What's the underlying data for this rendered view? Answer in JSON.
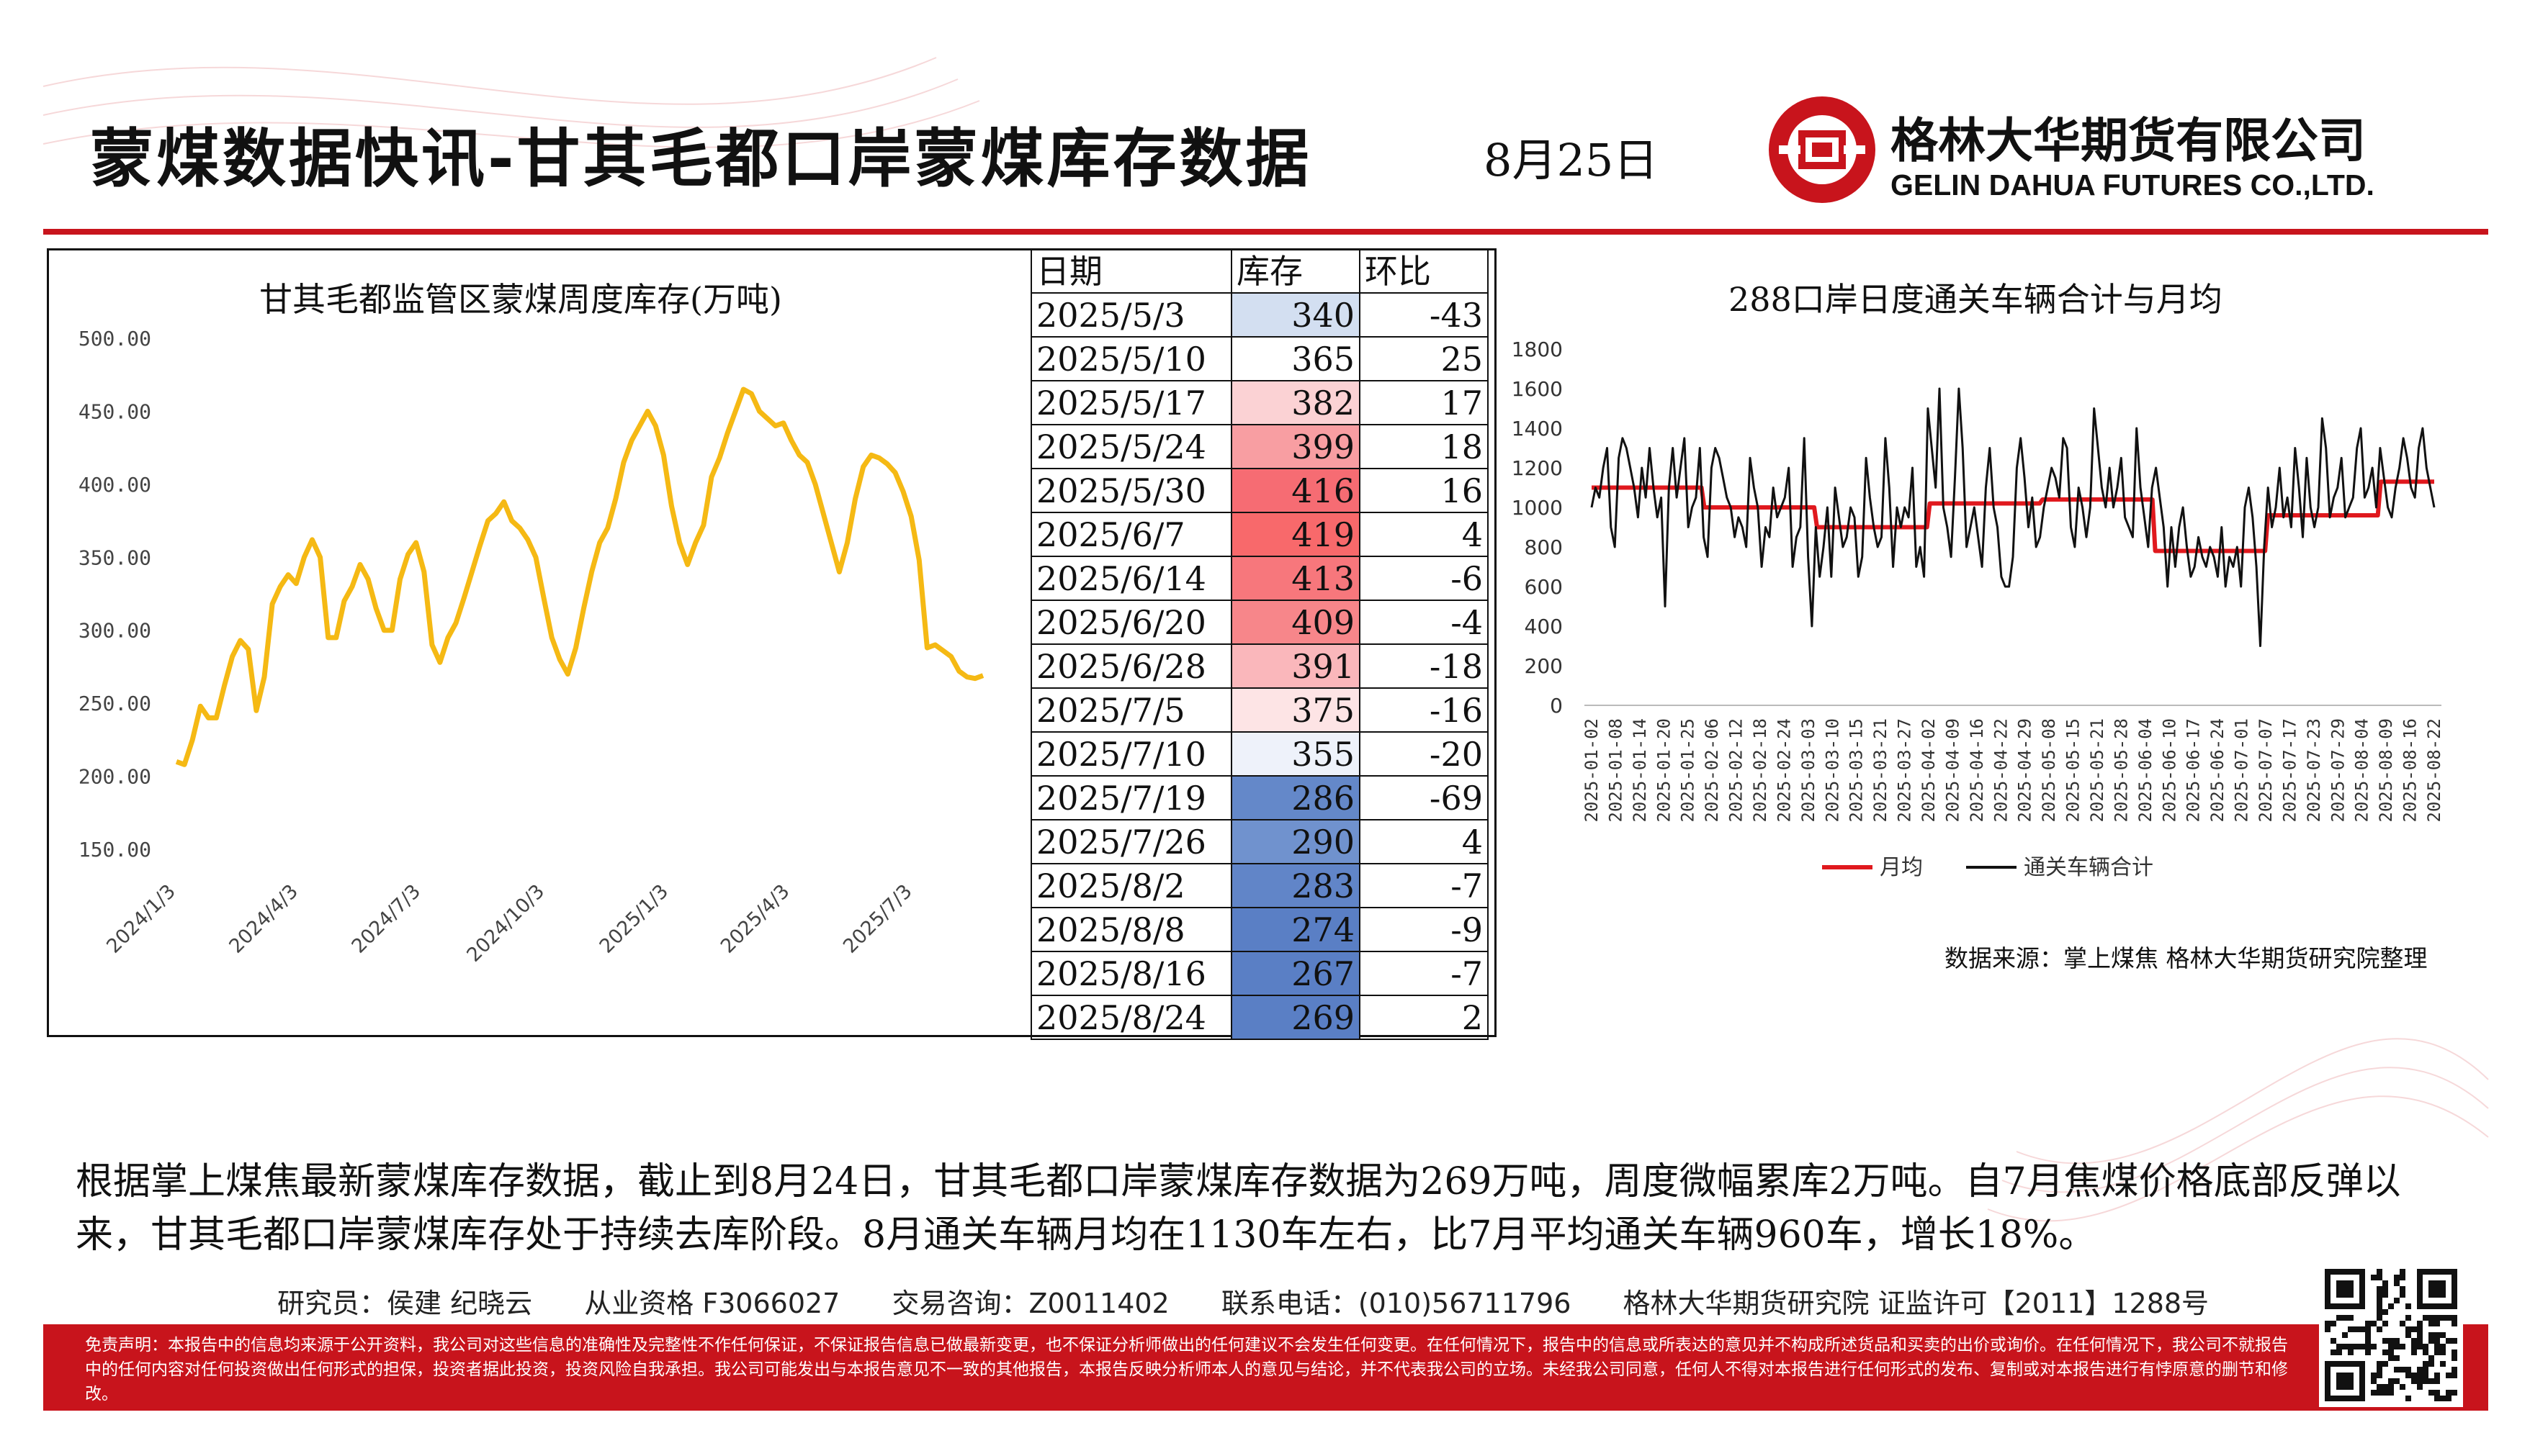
{
  "header": {
    "title": "蒙煤数据快讯-甘其毛都口岸蒙煤库存数据",
    "date": "8月25日",
    "company_cn": "格林大华期货有限公司",
    "company_en": "GELIN DAHUA FUTURES CO.,LTD."
  },
  "colors": {
    "brand_red": "#c8141c",
    "line_yellow": "#f5b914",
    "avg_red": "#e0191e",
    "daily_black": "#111111"
  },
  "table": {
    "headers": [
      "日期",
      "库存",
      "环比"
    ],
    "rows": [
      {
        "date": "2025/5/3",
        "stock": "340",
        "change": "-43",
        "color": "#d3dff1"
      },
      {
        "date": "2025/5/10",
        "stock": "365",
        "change": "25",
        "color": "#ffffff"
      },
      {
        "date": "2025/5/17",
        "stock": "382",
        "change": "17",
        "color": "#fbd2d4"
      },
      {
        "date": "2025/5/24",
        "stock": "399",
        "change": "18",
        "color": "#f89ea2"
      },
      {
        "date": "2025/5/30",
        "stock": "416",
        "change": "16",
        "color": "#f66c73"
      },
      {
        "date": "2025/6/7",
        "stock": "419",
        "change": "4",
        "color": "#f8696b"
      },
      {
        "date": "2025/6/14",
        "stock": "413",
        "change": "-6",
        "color": "#f7777c"
      },
      {
        "date": "2025/6/20",
        "stock": "409",
        "change": "-4",
        "color": "#f7868a"
      },
      {
        "date": "2025/6/28",
        "stock": "391",
        "change": "-18",
        "color": "#fab7bb"
      },
      {
        "date": "2025/7/5",
        "stock": "375",
        "change": "-16",
        "color": "#fde4e5"
      },
      {
        "date": "2025/7/10",
        "stock": "355",
        "change": "-20",
        "color": "#eef2fa"
      },
      {
        "date": "2025/7/19",
        "stock": "286",
        "change": "-69",
        "color": "#6488c9"
      },
      {
        "date": "2025/7/26",
        "stock": "290",
        "change": "4",
        "color": "#7092ce"
      },
      {
        "date": "2025/8/2",
        "stock": "283",
        "change": "-7",
        "color": "#6185c8"
      },
      {
        "date": "2025/8/8",
        "stock": "274",
        "change": "-9",
        "color": "#5a7fc5"
      },
      {
        "date": "2025/8/16",
        "stock": "267",
        "change": "-7",
        "color": "#5a7fc5"
      },
      {
        "date": "2025/8/24",
        "stock": "269",
        "change": "2",
        "color": "#5a7fc5"
      }
    ]
  },
  "chart_data": [
    {
      "type": "line",
      "title": "甘其毛都监管区蒙煤周度库存(万吨)",
      "ylim": [
        150,
        500
      ],
      "yticks": [
        "150.00",
        "200.00",
        "250.00",
        "300.00",
        "350.00",
        "400.00",
        "450.00",
        "500.00"
      ],
      "xticks": [
        "2024/1/3",
        "2024/4/3",
        "2024/7/3",
        "2024/10/3",
        "2025/1/3",
        "2025/4/3",
        "2025/7/3"
      ],
      "x_range": [
        "2024-01-03",
        "2025-08-24"
      ],
      "grid": false,
      "series": [
        {
          "values": [
            210,
            208,
            225,
            248,
            240,
            240,
            262,
            282,
            293,
            287,
            245,
            268,
            318,
            330,
            338,
            332,
            350,
            362,
            350,
            295,
            295,
            320,
            330,
            345,
            335,
            315,
            300,
            300,
            335,
            352,
            360,
            340,
            290,
            278,
            295,
            305,
            322,
            340,
            358,
            375,
            380,
            388,
            375,
            370,
            362,
            350,
            322,
            295,
            280,
            270,
            288,
            315,
            340,
            360,
            370,
            390,
            415,
            430,
            440,
            450,
            440,
            420,
            385,
            360,
            345,
            360,
            372,
            405,
            418,
            435,
            450,
            465,
            462,
            450,
            445,
            440,
            442,
            430,
            420,
            415,
            400,
            380,
            360,
            340,
            360,
            390,
            412,
            420,
            418,
            414,
            408,
            395,
            378,
            348,
            288,
            290,
            286,
            282,
            272,
            268,
            267,
            269
          ]
        }
      ]
    },
    {
      "type": "line",
      "title": "288口岸日度通关车辆合计与月均",
      "ylim": [
        0,
        1800
      ],
      "yticks": [
        "0",
        "200",
        "400",
        "600",
        "800",
        "1000",
        "1200",
        "1400",
        "1600",
        "1800"
      ],
      "xticks": [
        "2025-01-02",
        "2025-01-08",
        "2025-01-14",
        "2025-01-20",
        "2025-01-25",
        "2025-02-06",
        "2025-02-12",
        "2025-02-18",
        "2025-02-24",
        "2025-03-03",
        "2025-03-10",
        "2025-03-15",
        "2025-03-21",
        "2025-03-27",
        "2025-04-02",
        "2025-04-09",
        "2025-04-16",
        "2025-04-22",
        "2025-04-29",
        "2025-05-08",
        "2025-05-15",
        "2025-05-21",
        "2025-05-28",
        "2025-06-04",
        "2025-06-10",
        "2025-06-17",
        "2025-06-24",
        "2025-07-01",
        "2025-07-07",
        "2025-07-17",
        "2025-07-23",
        "2025-07-29",
        "2025-08-04",
        "2025-08-09",
        "2025-08-16",
        "2025-08-22"
      ],
      "grid": false,
      "legend": [
        "月均",
        "通关车辆合计"
      ],
      "legend_position": "bottom",
      "series": [
        {
          "name": "月均",
          "values": [
            1100,
            1100,
            1100,
            1100,
            1100,
            1100,
            1100,
            1100,
            1100,
            1100,
            1100,
            1100,
            1100,
            1100,
            1100,
            1100,
            1100,
            1100,
            1100,
            1100,
            1100,
            1100,
            1100,
            1100,
            1100,
            1100,
            1100,
            1100,
            1100,
            1100,
            1100,
            1100,
            1100,
            1100,
            1100,
            1100,
            1100,
            1100,
            1100,
            1100,
            1000,
            1000,
            1000,
            1000,
            1000,
            1000,
            1000,
            1000,
            1000,
            1000,
            1000,
            1000,
            1000,
            1000,
            1000,
            1000,
            1000,
            1000,
            1000,
            1000,
            1000,
            1000,
            1000,
            1000,
            1000,
            1000,
            1000,
            1000,
            1000,
            1000,
            1000,
            1000,
            1000,
            1000,
            1000,
            1000,
            1000,
            1000,
            1000,
            1000,
            900,
            900,
            900,
            900,
            900,
            900,
            900,
            900,
            900,
            900,
            900,
            900,
            900,
            900,
            900,
            900,
            900,
            900,
            900,
            900,
            900,
            900,
            900,
            900,
            900,
            900,
            900,
            900,
            900,
            900,
            900,
            900,
            900,
            900,
            900,
            900,
            900,
            900,
            900,
            900,
            1020,
            1020,
            1020,
            1020,
            1020,
            1020,
            1020,
            1020,
            1020,
            1020,
            1020,
            1020,
            1020,
            1020,
            1020,
            1020,
            1020,
            1020,
            1020,
            1020,
            1020,
            1020,
            1020,
            1020,
            1020,
            1020,
            1020,
            1020,
            1020,
            1020,
            1020,
            1020,
            1020,
            1020,
            1020,
            1020,
            1020,
            1020,
            1020,
            1020,
            1040,
            1040,
            1040,
            1040,
            1040,
            1040,
            1040,
            1040,
            1040,
            1040,
            1040,
            1040,
            1040,
            1040,
            1040,
            1040,
            1040,
            1040,
            1040,
            1040,
            1040,
            1040,
            1040,
            1040,
            1040,
            1040,
            1040,
            1040,
            1040,
            1040,
            1040,
            1040,
            1040,
            1040,
            1040,
            1040,
            1040,
            1040,
            1040,
            1040,
            780,
            780,
            780,
            780,
            780,
            780,
            780,
            780,
            780,
            780,
            780,
            780,
            780,
            780,
            780,
            780,
            780,
            780,
            780,
            780,
            780,
            780,
            780,
            780,
            780,
            780,
            780,
            780,
            780,
            780,
            780,
            780,
            780,
            780,
            780,
            780,
            780,
            780,
            780,
            780,
            960,
            960,
            960,
            960,
            960,
            960,
            960,
            960,
            960,
            960,
            960,
            960,
            960,
            960,
            960,
            960,
            960,
            960,
            960,
            960,
            960,
            960,
            960,
            960,
            960,
            960,
            960,
            960,
            960,
            960,
            960,
            960,
            960,
            960,
            960,
            960,
            960,
            960,
            960,
            960,
            1130,
            1130,
            1130,
            1130,
            1130,
            1130,
            1130,
            1130,
            1130,
            1130,
            1130,
            1130,
            1130,
            1130,
            1130,
            1130,
            1130,
            1130,
            1130,
            1130
          ]
        },
        {
          "name": "通关车辆合计",
          "values": [
            1000,
            1100,
            1050,
            1200,
            1300,
            900,
            800,
            1250,
            1350,
            1300,
            1200,
            1100,
            950,
            1200,
            1050,
            1300,
            1100,
            950,
            1050,
            500,
            1100,
            1300,
            1050,
            1200,
            1350,
            900,
            1000,
            1050,
            1300,
            850,
            750,
            1200,
            1300,
            1250,
            1150,
            1050,
            1000,
            850,
            950,
            900,
            800,
            1250,
            1100,
            1000,
            700,
            900,
            850,
            1100,
            950,
            1000,
            1050,
            1200,
            700,
            850,
            900,
            1350,
            750,
            400,
            900,
            650,
            800,
            1000,
            650,
            1100,
            950,
            800,
            850,
            1000,
            950,
            650,
            750,
            1250,
            1050,
            900,
            800,
            850,
            1350,
            1100,
            700,
            1000,
            900,
            1000,
            950,
            1200,
            700,
            800,
            650,
            1500,
            1300,
            1100,
            1600,
            1000,
            900,
            750,
            1150,
            1600,
            1300,
            800,
            900,
            1000,
            850,
            700,
            1100,
            1300,
            1000,
            900,
            650,
            600,
            600,
            750,
            1200,
            1350,
            1150,
            900,
            1050,
            800,
            850,
            1000,
            1100,
            1200,
            1150,
            1050,
            1350,
            1300,
            900,
            800,
            1100,
            1000,
            850,
            1000,
            1500,
            1300,
            1100,
            1000,
            1200,
            1000,
            1100,
            1250,
            950,
            900,
            850,
            1400,
            1100,
            950,
            800,
            1100,
            1200,
            1050,
            900,
            600,
            900,
            700,
            900,
            1000,
            800,
            650,
            700,
            850,
            750,
            700,
            800,
            750,
            650,
            900,
            600,
            750,
            700,
            800,
            600,
            1000,
            1100,
            950,
            700,
            300,
            800,
            1100,
            900,
            1000,
            1200,
            950,
            1050,
            900,
            1300,
            1100,
            850,
            1250,
            1000,
            900,
            1000,
            1450,
            1300,
            950,
            1050,
            1100,
            1250,
            950,
            1000,
            1050,
            1300,
            1400,
            1050,
            1100,
            1200,
            1000,
            1300,
            1150,
            1000,
            950,
            1100,
            1200,
            1350,
            1250,
            1100,
            1050,
            1300,
            1400,
            1200,
            1100,
            1000
          ]
        }
      ]
    }
  ],
  "source": "数据来源：掌上煤焦  格林大华期货研究院整理",
  "summary": "根据掌上煤焦最新蒙煤库存数据，截止到8月24日，甘其毛都口岸蒙煤库存数据为269万吨，周度微幅累库2万吨。自7月焦煤价格底部反弹以来，甘其毛都口岸蒙煤库存处于持续去库阶段。8月通关车辆月均在1130车左右，比7月平均通关车辆960车，增长18%。",
  "credits": {
    "researchers": "研究员：侯建  纪晓云",
    "license": "从业资格 F3066027",
    "consult": "交易咨询：Z0011402",
    "phone": "联系电话：(010)56711796",
    "institute": "格林大华期货研究院  证监许可【2011】1288号"
  },
  "disclaimer": "免责声明：本报告中的信息均来源于公开资料，我公司对这些信息的准确性及完整性不作任何保证，不保证报告信息已做最新变更，也不保证分析师做出的任何建议不会发生任何变更。在任何情况下，报告中的信息或所表达的意见并不构成所述货品和买卖的出价或询价。在任何情况下，我公司不就报告中的任何内容对任何投资做出任何形式的担保，投资者据此投资，投资风险自我承担。我公司可能发出与本报告意见不一致的其他报告，本报告反映分析师本人的意见与结论，并不代表我公司的立场。未经我公司同意，任何人不得对本报告进行任何形式的发布、复制或对本报告进行有悖原意的删节和修改。"
}
